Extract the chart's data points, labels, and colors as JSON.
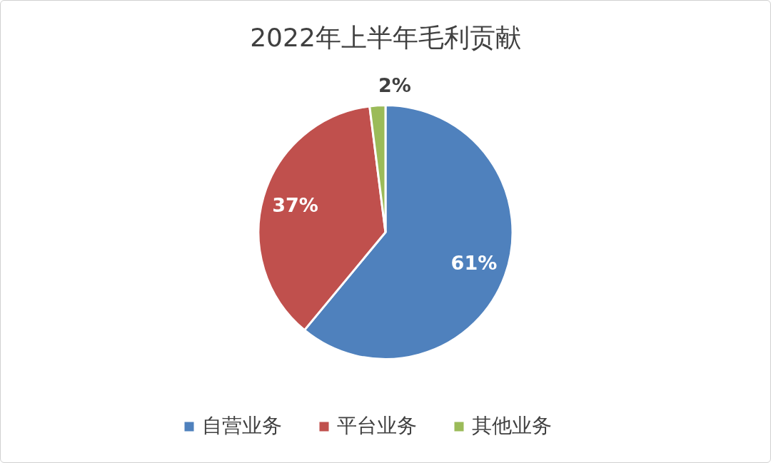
{
  "chart_data": {
    "type": "pie",
    "title": "2022年上半年毛利贡献",
    "categories": [
      "自营业务",
      "平台业务",
      "其他业务"
    ],
    "values": [
      61,
      37,
      2
    ],
    "colors": [
      "#4f81bd",
      "#c0504d",
      "#9bbb59"
    ],
    "value_labels": [
      "61%",
      "37%",
      "2%"
    ],
    "legend": "bottom"
  }
}
